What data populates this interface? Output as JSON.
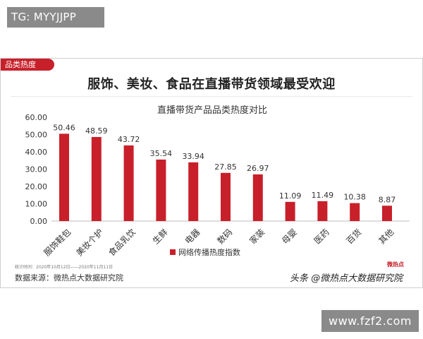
{
  "top_badge": "TG: MYYJJPP",
  "section_tag": "品类热度",
  "headline": "服饰、美妆、食品在直播带货领域最受欢迎",
  "footnote": "统计时间：2020年10月12日——2020年11月11日",
  "source": "数据来源：微热点大数据研究院",
  "watermark": "头条 @微热点大数据研究院",
  "watermark_logo": "微热点",
  "site_badge": "www.fzf2.com",
  "colors": {
    "bar": "#c8202a",
    "accent": "#c8202a"
  },
  "chart_data": {
    "type": "bar",
    "title": "直播带货产品品类热度对比",
    "categories": [
      "服饰鞋包",
      "美妆个护",
      "食品乳饮",
      "生鲜",
      "电器",
      "数码",
      "家装",
      "母婴",
      "医药",
      "百货",
      "其他"
    ],
    "series": [
      {
        "name": "网络传播热度指数",
        "values": [
          50.46,
          48.59,
          43.72,
          35.54,
          33.94,
          27.85,
          26.97,
          11.09,
          11.49,
          10.38,
          8.87
        ]
      }
    ],
    "value_labels": [
      "50.46",
      "48.59",
      "43.72",
      "35.54",
      "33.94",
      "27.85",
      "26.97",
      "11.09",
      "11.49",
      "10.38",
      "8.87"
    ],
    "ylim": [
      0,
      60
    ],
    "yticks": [
      "0.00",
      "10.00",
      "20.00",
      "30.00",
      "40.00",
      "50.00",
      "60.00"
    ],
    "grid": false,
    "legend": "bottom"
  }
}
